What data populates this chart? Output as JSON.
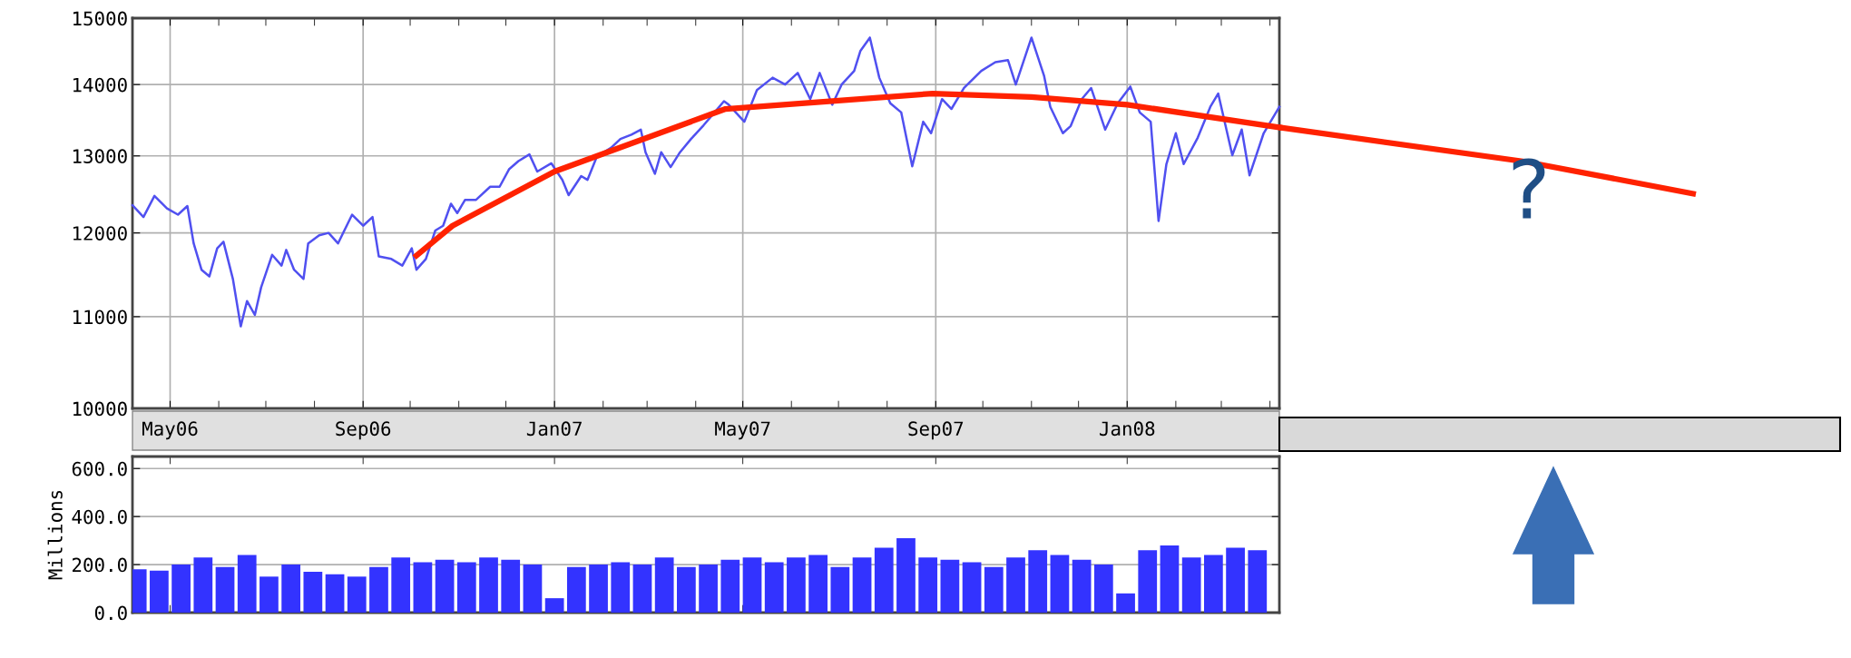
{
  "chart_data": [
    {
      "type": "line",
      "log": true,
      "grid": true,
      "annotations": [
        "?"
      ],
      "xlim": [
        "2006-04-07",
        "2008-04-07"
      ],
      "xticks": [
        {
          "value": "2006-05-01",
          "label": "May06"
        },
        {
          "value": "2006-06-01",
          "label": null
        },
        {
          "value": "2006-07-01",
          "label": null
        },
        {
          "value": "2006-08-01",
          "label": null
        },
        {
          "value": "2006-09-01",
          "label": "Sep06"
        },
        {
          "value": "2006-10-01",
          "label": null
        },
        {
          "value": "2006-11-01",
          "label": null
        },
        {
          "value": "2006-12-01",
          "label": null
        },
        {
          "value": "2007-01-01",
          "label": "Jan07"
        },
        {
          "value": "2007-02-01",
          "label": null
        },
        {
          "value": "2007-03-01",
          "label": null
        },
        {
          "value": "2007-04-01",
          "label": null
        },
        {
          "value": "2007-05-01",
          "label": "May07"
        },
        {
          "value": "2007-06-01",
          "label": null
        },
        {
          "value": "2007-07-01",
          "label": null
        },
        {
          "value": "2007-08-01",
          "label": null
        },
        {
          "value": "2007-09-01",
          "label": "Sep07"
        },
        {
          "value": "2007-10-01",
          "label": null
        },
        {
          "value": "2007-11-01",
          "label": null
        },
        {
          "value": "2007-12-01",
          "label": null
        },
        {
          "value": "2008-01-01",
          "label": "Jan08"
        },
        {
          "value": "2008-02-01",
          "label": null
        },
        {
          "value": "2008-03-01",
          "label": null
        },
        {
          "value": "2008-04-01",
          "label": null
        }
      ],
      "ylim": [
        10000,
        15000
      ],
      "yticks": [
        10000,
        11000,
        12000,
        13000,
        14000,
        15000
      ],
      "series": [
        {
          "color": "#5050f0",
          "x": [
            "2006-04-07",
            "2006-04-14",
            "2006-04-21",
            "2006-04-29",
            "2006-05-06",
            "2006-05-12",
            "2006-05-16",
            "2006-05-21",
            "2006-05-26",
            "2006-05-31",
            "2006-06-04",
            "2006-06-10",
            "2006-06-15",
            "2006-06-19",
            "2006-06-24",
            "2006-06-28",
            "2006-07-05",
            "2006-07-11",
            "2006-07-14",
            "2006-07-19",
            "2006-07-25",
            "2006-07-28",
            "2006-08-04",
            "2006-08-10",
            "2006-08-16",
            "2006-08-25",
            "2006-09-01",
            "2006-09-07",
            "2006-09-11",
            "2006-09-19",
            "2006-09-26",
            "2006-10-02",
            "2006-10-05",
            "2006-10-11",
            "2006-10-17",
            "2006-10-22",
            "2006-10-27",
            "2006-10-31",
            "2006-11-05",
            "2006-11-12",
            "2006-11-21",
            "2006-11-27",
            "2006-12-03",
            "2006-12-09",
            "2006-12-16",
            "2006-12-21",
            "2006-12-30",
            "2007-01-06",
            "2007-01-10",
            "2007-01-18",
            "2007-01-22",
            "2007-01-28",
            "2007-02-06",
            "2007-02-12",
            "2007-02-19",
            "2007-02-25",
            "2007-02-28",
            "2007-03-06",
            "2007-03-10",
            "2007-03-16",
            "2007-03-22",
            "2007-03-29",
            "2007-04-06",
            "2007-04-13",
            "2007-04-19",
            "2007-04-22",
            "2007-05-02",
            "2007-05-10",
            "2007-05-20",
            "2007-05-28",
            "2007-06-05",
            "2007-06-13",
            "2007-06-19",
            "2007-06-27",
            "2007-07-03",
            "2007-07-11",
            "2007-07-15",
            "2007-07-21",
            "2007-07-27",
            "2007-08-03",
            "2007-08-10",
            "2007-08-17",
            "2007-08-24",
            "2007-08-29",
            "2007-09-05",
            "2007-09-11",
            "2007-09-19",
            "2007-09-30",
            "2007-10-09",
            "2007-10-17",
            "2007-10-22",
            "2007-11-01",
            "2007-11-09",
            "2007-11-13",
            "2007-11-21",
            "2007-11-26",
            "2007-12-03",
            "2007-12-09",
            "2007-12-18",
            "2007-12-26",
            "2008-01-03",
            "2008-01-09",
            "2008-01-16",
            "2008-01-21",
            "2008-01-26",
            "2008-02-01",
            "2008-02-06",
            "2008-02-15",
            "2008-02-23",
            "2008-02-28",
            "2008-03-08",
            "2008-03-14",
            "2008-03-19",
            "2008-03-28",
            "2008-04-07"
          ],
          "values": [
            12350,
            12200,
            12470,
            12310,
            12230,
            12340,
            11870,
            11550,
            11470,
            11810,
            11890,
            11440,
            10890,
            11180,
            11020,
            11340,
            11730,
            11600,
            11790,
            11550,
            11440,
            11870,
            11970,
            12000,
            11870,
            12230,
            12090,
            12200,
            11710,
            11680,
            11600,
            11810,
            11550,
            11680,
            12030,
            12090,
            12370,
            12250,
            12420,
            12420,
            12590,
            12590,
            12820,
            12930,
            13020,
            12790,
            12900,
            12680,
            12480,
            12730,
            12680,
            12990,
            13110,
            13230,
            13290,
            13360,
            13050,
            12760,
            13050,
            12850,
            13050,
            13230,
            13420,
            13600,
            13760,
            13710,
            13470,
            13920,
            14100,
            14000,
            14170,
            13790,
            14170,
            13710,
            14000,
            14200,
            14500,
            14700,
            14100,
            13730,
            13600,
            12860,
            13470,
            13310,
            13790,
            13650,
            13950,
            14200,
            14330,
            14360,
            14000,
            14700,
            14130,
            13680,
            13310,
            13410,
            13790,
            13950,
            13360,
            13730,
            13970,
            13600,
            13470,
            12150,
            12890,
            13310,
            12890,
            13250,
            13680,
            13870,
            13010,
            13360,
            12740,
            13310,
            13680
          ]
        },
        {
          "type": "line",
          "color": "#ff2200",
          "x": [
            "2006-10-05",
            "2006-10-28",
            "2007-01-01",
            "2007-04-20",
            "2007-08-30",
            "2007-11-01",
            "2008-01-01",
            "2008-04-07"
          ],
          "values": [
            11720,
            12090,
            12790,
            13650,
            13870,
            13820,
            13710,
            13390
          ]
        }
      ]
    },
    {
      "type": "bar",
      "ylabel": "Millions",
      "grid": true,
      "tick_labels": "y",
      "color": "#3333ff",
      "xlim": [
        "2006-04-07",
        "2008-04-07"
      ],
      "xticks": [
        {
          "value": "2006-05-01",
          "label": null
        },
        {
          "value": "2006-09-01",
          "label": null
        },
        {
          "value": "2007-01-01",
          "label": null
        },
        {
          "value": "2007-05-01",
          "label": null
        },
        {
          "value": "2007-09-01",
          "label": null
        },
        {
          "value": "2008-01-01",
          "label": null
        }
      ],
      "ylim": [
        0,
        650
      ],
      "yticks": [
        {
          "value": 0,
          "label": "0.0"
        },
        {
          "value": 200,
          "label": "200.0"
        },
        {
          "value": 400,
          "label": "400.0"
        },
        {
          "value": 600,
          "label": "600.0"
        }
      ],
      "x": [
        "2006-04-10",
        "2006-04-24",
        "2006-05-08",
        "2006-05-22",
        "2006-06-05",
        "2006-06-19",
        "2006-07-03",
        "2006-07-17",
        "2006-07-31",
        "2006-08-14",
        "2006-08-28",
        "2006-09-11",
        "2006-09-25",
        "2006-10-09",
        "2006-10-23",
        "2006-11-06",
        "2006-11-20",
        "2006-12-04",
        "2006-12-18",
        "2007-01-01",
        "2007-01-15",
        "2007-01-29",
        "2007-02-12",
        "2007-02-26",
        "2007-03-12",
        "2007-03-26",
        "2007-04-09",
        "2007-04-23",
        "2007-05-07",
        "2007-05-21",
        "2007-06-04",
        "2007-06-18",
        "2007-07-02",
        "2007-07-16",
        "2007-07-30",
        "2007-08-13",
        "2007-08-27",
        "2007-09-10",
        "2007-09-24",
        "2007-10-08",
        "2007-10-22",
        "2007-11-05",
        "2007-11-19",
        "2007-12-03",
        "2007-12-17",
        "2007-12-31",
        "2008-01-14",
        "2008-01-28",
        "2008-02-11",
        "2008-02-25",
        "2008-03-10",
        "2008-03-24"
      ],
      "values": [
        180,
        175,
        200,
        230,
        190,
        240,
        150,
        200,
        170,
        160,
        150,
        190,
        230,
        210,
        220,
        210,
        230,
        220,
        200,
        60,
        190,
        200,
        210,
        200,
        230,
        190,
        200,
        220,
        230,
        210,
        230,
        240,
        190,
        230,
        270,
        310,
        230,
        220,
        210,
        190,
        230,
        260,
        240,
        220,
        200,
        80,
        260,
        280,
        230,
        240,
        270,
        260
      ]
    }
  ]
}
